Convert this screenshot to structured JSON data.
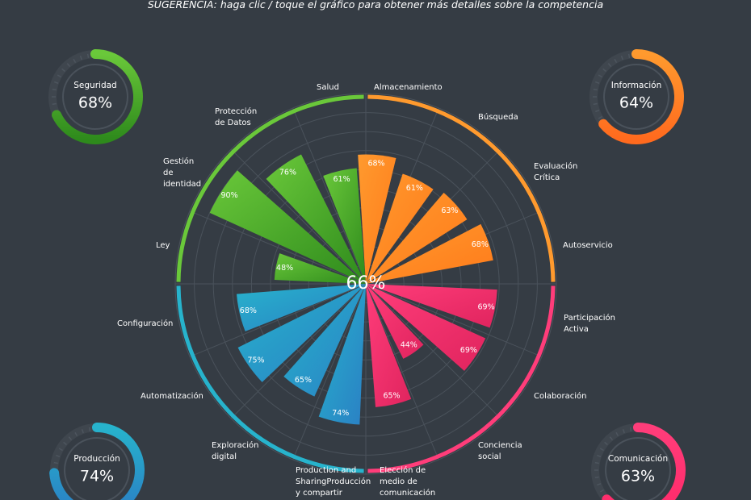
{
  "hint": "SUGERENCIA: haga clic / toque el gráfico para obtener más detalles sobre la competencia",
  "overall_value": "66%",
  "colors": {
    "background": "#353c44",
    "seguridad": "#6ac83a",
    "informacion": "#ff9a2e",
    "comunicacion": "#ff3d7a",
    "produccion": "#27b3cc"
  },
  "gauges": [
    {
      "id": "seguridad",
      "name": "Seguridad",
      "value": 68,
      "label": "68%",
      "color": "#6ac83a",
      "color2": "#2e8a1c",
      "corner": "top-left"
    },
    {
      "id": "informacion",
      "name": "Información",
      "value": 64,
      "label": "64%",
      "color": "#ff9a2e",
      "color2": "#ff6a1e",
      "corner": "top-right"
    },
    {
      "id": "produccion",
      "name": "Producción",
      "value": 74,
      "label": "74%",
      "color": "#27b3cc",
      "color2": "#2a7fc4",
      "corner": "bottom-left"
    },
    {
      "id": "comunicacion",
      "name": "Comunicación",
      "value": 63,
      "label": "63%",
      "color": "#ff3d7a",
      "color2": "#ff2a6a",
      "corner": "bottom-right"
    }
  ],
  "chart_data": {
    "type": "polar-bar",
    "title": "",
    "rlim": [
      0,
      100
    ],
    "groups": [
      {
        "name": "Información",
        "color": "#ff9a2e",
        "color2": "#ff7a1a",
        "arc_start": 0,
        "arc_end": 90
      },
      {
        "name": "Comunicación",
        "color": "#ff3d7a",
        "color2": "#e0245e",
        "arc_start": 90,
        "arc_end": 180
      },
      {
        "name": "Producción",
        "color": "#27b3cc",
        "color2": "#2a7fc4",
        "arc_start": 180,
        "arc_end": 270
      },
      {
        "name": "Seguridad",
        "color": "#6ac83a",
        "color2": "#2e8a1c",
        "arc_start": 270,
        "arc_end": 360
      }
    ],
    "categories": [
      {
        "label": "Almacenamiento",
        "group": "Información",
        "value": 68,
        "value_label": "68%",
        "angle": 5,
        "label_angle": 2
      },
      {
        "label": "Búsqueda",
        "group": "Información",
        "value": 61,
        "value_label": "61%",
        "angle": 27,
        "label_angle": 24
      },
      {
        "label": "Evaluación Crítica",
        "group": "Información",
        "value": 63,
        "value_label": "63%",
        "angle": 49,
        "label_angle": 46
      },
      {
        "label": "Autoservicio",
        "group": "Información",
        "value": 68,
        "value_label": "68%",
        "angle": 71,
        "label_angle": 74
      },
      {
        "label": "Participación Activa",
        "group": "Comunicación",
        "value": 69,
        "value_label": "69%",
        "angle": 101,
        "label_angle": 104
      },
      {
        "label": "Colaboración",
        "group": "Comunicación",
        "value": 69,
        "value_label": "69%",
        "angle": 123,
        "label_angle": 126
      },
      {
        "label": "Conciencia social",
        "group": "Comunicación",
        "value": 44,
        "value_label": "44%",
        "angle": 145,
        "label_angle": 148
      },
      {
        "label": "Elección de medio de comunicación",
        "group": "Comunicación",
        "value": 65,
        "value_label": "65%",
        "angle": 167,
        "label_angle": 170
      },
      {
        "label": "Production and SharingProducción y compartir",
        "group": "Producción",
        "value": 74,
        "value_label": "74%",
        "angle": 191,
        "label_angle": 190
      },
      {
        "label": "Exploración digital",
        "group": "Producción",
        "value": 65,
        "value_label": "65%",
        "angle": 213,
        "label_angle": 216
      },
      {
        "label": "Automatización",
        "group": "Producción",
        "value": 75,
        "value_label": "75%",
        "angle": 235,
        "label_angle": 239
      },
      {
        "label": "Configuración",
        "group": "Producción",
        "value": 68,
        "value_label": "68%",
        "angle": 257,
        "label_angle": 261
      },
      {
        "label": "Ley",
        "group": "Seguridad",
        "value": 48,
        "value_label": "48%",
        "angle": 281,
        "label_angle": 284
      },
      {
        "label": "Gestión de identidad",
        "group": "Seguridad",
        "value": 90,
        "value_label": "90%",
        "angle": 303,
        "label_angle": 306
      },
      {
        "label": "Protección de Datos",
        "group": "Seguridad",
        "value": 76,
        "value_label": "76%",
        "angle": 325,
        "label_angle": 331
      },
      {
        "label": "Salud",
        "group": "Seguridad",
        "value": 61,
        "value_label": "61%",
        "angle": 347,
        "label_angle": 354
      }
    ]
  }
}
